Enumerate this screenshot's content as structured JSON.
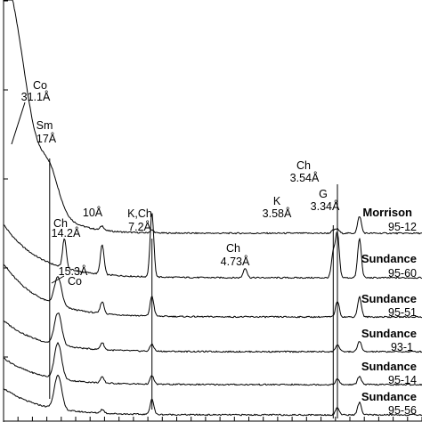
{
  "chart_data": {
    "type": "line",
    "title": "",
    "xlabel": "",
    "ylabel": "",
    "grid": false,
    "legend": "none",
    "x_unit": "d-spacing (Å)",
    "series": [
      {
        "name": "Morrison 95-12",
        "formation": "Morrison",
        "sample": "95-12",
        "peaks": [
          {
            "d": 31.1,
            "intensity": 0.6
          },
          {
            "d": 17.0,
            "intensity": 0.25
          },
          {
            "d": 10.0,
            "intensity": 0.03
          },
          {
            "d": 7.2,
            "intensity": 0.02
          },
          {
            "d": 3.58,
            "intensity": 0.02
          },
          {
            "d": 3.54,
            "intensity": 0.03
          },
          {
            "d": 3.34,
            "intensity": 0.12
          }
        ]
      },
      {
        "name": "Sundance 95-60",
        "formation": "Sundance",
        "sample": "95-60",
        "peaks": [
          {
            "d": 14.2,
            "intensity": 0.3
          },
          {
            "d": 10.0,
            "intensity": 0.3
          },
          {
            "d": 7.2,
            "intensity": 0.65
          },
          {
            "d": 4.73,
            "intensity": 0.1
          },
          {
            "d": 3.58,
            "intensity": 0.25
          },
          {
            "d": 3.54,
            "intensity": 0.45
          },
          {
            "d": 3.34,
            "intensity": 0.4
          }
        ]
      },
      {
        "name": "Sundance 95-51",
        "formation": "Sundance",
        "sample": "95-51",
        "peaks": [
          {
            "d": 15.3,
            "intensity": 0.35
          },
          {
            "d": 10.0,
            "intensity": 0.15
          },
          {
            "d": 7.2,
            "intensity": 0.25
          },
          {
            "d": 3.54,
            "intensity": 0.2
          },
          {
            "d": 3.34,
            "intensity": 0.25
          }
        ]
      },
      {
        "name": "Sundance 93-1",
        "formation": "Sundance",
        "sample": "93-1",
        "peaks": [
          {
            "d": 15.3,
            "intensity": 0.45
          },
          {
            "d": 10.0,
            "intensity": 0.1
          },
          {
            "d": 7.2,
            "intensity": 0.1
          },
          {
            "d": 3.54,
            "intensity": 0.1
          },
          {
            "d": 3.34,
            "intensity": 0.15
          }
        ]
      },
      {
        "name": "Sundance 95-14",
        "formation": "Sundance",
        "sample": "95-14",
        "peaks": [
          {
            "d": 15.3,
            "intensity": 0.5
          },
          {
            "d": 10.0,
            "intensity": 0.08
          },
          {
            "d": 7.2,
            "intensity": 0.12
          },
          {
            "d": 3.54,
            "intensity": 0.08
          },
          {
            "d": 3.34,
            "intensity": 0.12
          }
        ]
      },
      {
        "name": "Sundance 95-56",
        "formation": "Sundance",
        "sample": "95-56",
        "peaks": [
          {
            "d": 15.3,
            "intensity": 0.55
          },
          {
            "d": 10.0,
            "intensity": 0.06
          },
          {
            "d": 7.2,
            "intensity": 0.25
          },
          {
            "d": 3.54,
            "intensity": 0.12
          },
          {
            "d": 3.34,
            "intensity": 0.2
          }
        ]
      }
    ],
    "annotations": [
      {
        "id": "co",
        "lines": [
          "Co",
          "31.1Å"
        ]
      },
      {
        "id": "sm",
        "lines": [
          "Sm",
          "17Å"
        ]
      },
      {
        "id": "ch14",
        "lines": [
          "Ch",
          "14.2Å"
        ]
      },
      {
        "id": "ten",
        "lines": [
          "10Å"
        ]
      },
      {
        "id": "kch",
        "lines": [
          "K,Ch",
          "7.2Å"
        ]
      },
      {
        "id": "ch473",
        "lines": [
          "Ch",
          "4.73Å"
        ]
      },
      {
        "id": "k358",
        "lines": [
          "K",
          "3.58Å"
        ]
      },
      {
        "id": "ch354",
        "lines": [
          "Ch",
          "3.54Å"
        ]
      },
      {
        "id": "g334",
        "lines": [
          "G",
          "3.34Å"
        ]
      },
      {
        "id": "co153",
        "lines": [
          "15.3Å",
          "Co"
        ]
      }
    ],
    "colors": {
      "line": "#000000",
      "background": "#ffffff"
    }
  }
}
